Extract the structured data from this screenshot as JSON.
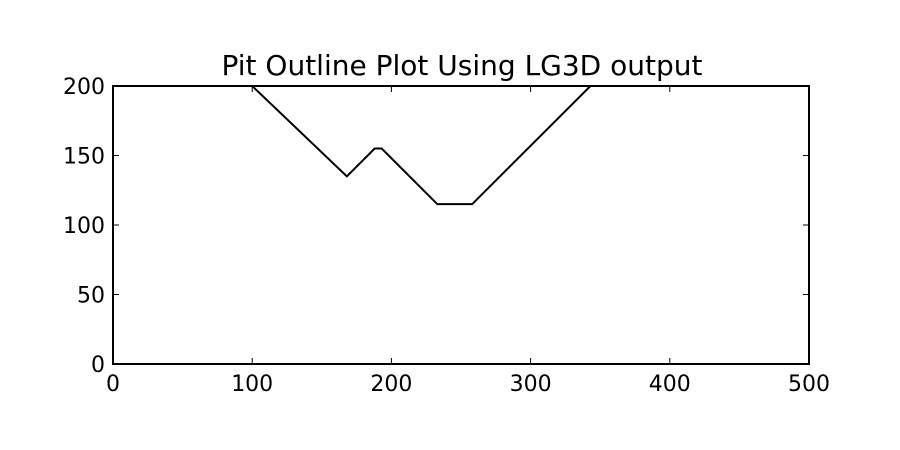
{
  "chart_data": {
    "type": "line",
    "title": "Pit Outline Plot Using LG3D output",
    "xlabel": "",
    "ylabel": "",
    "xlim": [
      0,
      500
    ],
    "ylim": [
      0,
      200
    ],
    "xticks": [
      0,
      100,
      200,
      300,
      400,
      500
    ],
    "yticks": [
      0,
      50,
      100,
      150,
      200
    ],
    "grid": false,
    "series": [
      {
        "color": "#000000",
        "x": [
          100,
          168,
          188,
          193,
          233,
          258,
          343
        ],
        "y": [
          200,
          135,
          155,
          155,
          115,
          115,
          200
        ]
      }
    ]
  }
}
